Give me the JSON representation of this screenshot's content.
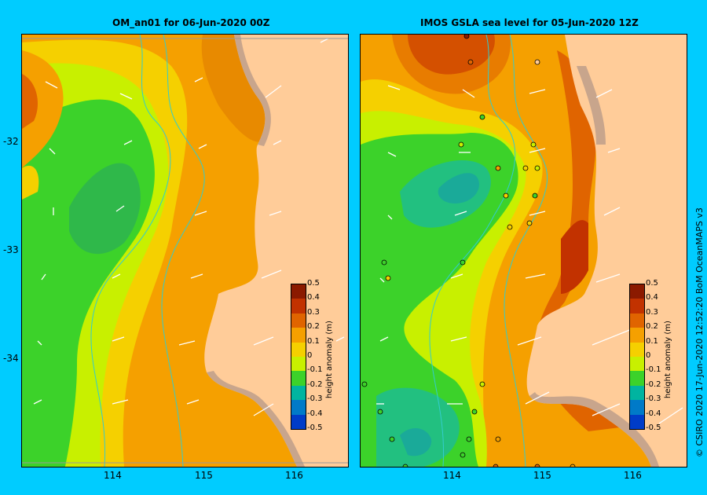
{
  "left_panel": {
    "title": "OM_an01  for 06-Jun-2020 00Z"
  },
  "right_panel": {
    "title": "IMOS GSLA sea level   for 05-Jun-2020 12Z"
  },
  "axes": {
    "y_ticks": [
      "-32",
      "-33",
      "-34"
    ],
    "x_ticks": [
      "114",
      "115",
      "116"
    ]
  },
  "colorbar": {
    "label": "height anomaly (m)",
    "ticks": [
      "0.5",
      "0.4",
      "0.3",
      "0.2",
      "0.1",
      "0",
      "-0.1",
      "-0.2",
      "-0.3",
      "-0.4",
      "-0.5"
    ],
    "colors": [
      "#8b1a00",
      "#c23200",
      "#e06400",
      "#f5a000",
      "#f5d000",
      "#c8f000",
      "#3cd22a",
      "#00b4a0",
      "#007ac8",
      "#003cc8",
      "#0a0a90"
    ]
  },
  "copyright": "© CSIRO 2020    17-Jun-2020 12:52:20 BoM OceanMAPS v3",
  "colors": {
    "background": "#00ccff",
    "land": "#ffcc99",
    "shelf": "#c8a58c",
    "isobath": "#33cccc"
  }
}
